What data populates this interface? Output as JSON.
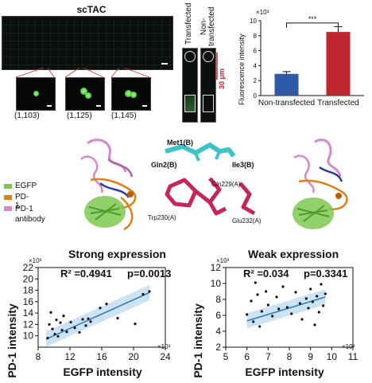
{
  "panel_a": {
    "title": "scTAC",
    "cell_labels": [
      "(1,103)",
      "(1,125)",
      "(1,145)"
    ],
    "column_labels": [
      "Transfected",
      "Non-\ntransfected"
    ],
    "scale_label": "30 μm"
  },
  "bar_chart": {
    "type": "bar",
    "categories": [
      "Non-transfected",
      "Transfected"
    ],
    "values": [
      2.9,
      8.5
    ],
    "errors": [
      0.3,
      0.7
    ],
    "colors": [
      "#2e5aa8",
      "#c0272d"
    ],
    "ylabel": "Fluorescence intensity",
    "exponent": "×10³",
    "ylim": [
      0,
      10
    ],
    "yticks": [
      "0",
      "2",
      "4",
      "6",
      "8",
      "10"
    ],
    "significance": "***"
  },
  "structure": {
    "legend": [
      {
        "label": "EGFP",
        "color": "#7ec850"
      },
      {
        "label": "PD-1",
        "color": "#e07f1a"
      },
      {
        "label": "PD-1\nantibody",
        "color": "#d987c8"
      }
    ],
    "residues": [
      "Met1(B)",
      "Gln2(B)",
      "Ile3(B)",
      "Gln229(A)",
      "Trp230(A)",
      "Glu232(A)"
    ]
  },
  "chart_data": [
    {
      "type": "scatter",
      "title": "Strong expression",
      "xlabel": "EGFP intensity",
      "ylabel": "PD-1 intensity",
      "x_exponent": "×10³",
      "y_exponent": "×10³",
      "stats": [
        "R² =0.4941",
        "p=0.0013"
      ],
      "xlim": [
        8,
        24
      ],
      "ylim": [
        8,
        22
      ],
      "xticks": [
        "8",
        "12",
        "16",
        "20",
        "24"
      ],
      "yticks": [
        "10",
        "12",
        "14",
        "16",
        "18",
        "20",
        "22"
      ],
      "points": [
        {
          "x": 9.2,
          "y": 9.6
        },
        {
          "x": 9.4,
          "y": 12.0
        },
        {
          "x": 9.6,
          "y": 14.1
        },
        {
          "x": 9.8,
          "y": 11.2
        },
        {
          "x": 10.1,
          "y": 10.3
        },
        {
          "x": 10.3,
          "y": 12.8
        },
        {
          "x": 10.5,
          "y": 9.9
        },
        {
          "x": 10.8,
          "y": 12.3
        },
        {
          "x": 11.0,
          "y": 11.0
        },
        {
          "x": 11.2,
          "y": 13.5
        },
        {
          "x": 11.6,
          "y": 10.7
        },
        {
          "x": 12.1,
          "y": 12.4
        },
        {
          "x": 12.6,
          "y": 11.4
        },
        {
          "x": 13.2,
          "y": 10.6
        },
        {
          "x": 13.6,
          "y": 12.9
        },
        {
          "x": 14.0,
          "y": 11.8
        },
        {
          "x": 14.3,
          "y": 13.0
        },
        {
          "x": 14.6,
          "y": 12.5
        },
        {
          "x": 15.8,
          "y": 14.9
        },
        {
          "x": 16.6,
          "y": 15.6
        },
        {
          "x": 18.0,
          "y": 13.1
        },
        {
          "x": 20.2,
          "y": 12.1
        },
        {
          "x": 21.2,
          "y": 17.3
        },
        {
          "x": 22.0,
          "y": 17.8
        }
      ],
      "fit": {
        "x": [
          9,
          22
        ],
        "y": [
          9.4,
          17.6
        ]
      }
    },
    {
      "type": "scatter",
      "title": "Weak expression",
      "xlabel": "EGFP intensity",
      "ylabel": "PD-1 intensity",
      "x_exponent": "×10³",
      "y_exponent": "×10³",
      "stats": [
        "R² =0.034",
        "p=0.3341"
      ],
      "xlim": [
        5,
        11
      ],
      "ylim": [
        2,
        12
      ],
      "xticks": [
        "5",
        "6",
        "7",
        "8",
        "9",
        "10",
        "11"
      ],
      "yticks": [
        "2",
        "4",
        "6",
        "8",
        "10",
        "12"
      ],
      "points": [
        {
          "x": 6.0,
          "y": 6.1
        },
        {
          "x": 6.2,
          "y": 7.8
        },
        {
          "x": 6.3,
          "y": 5.2
        },
        {
          "x": 6.4,
          "y": 10.1
        },
        {
          "x": 6.5,
          "y": 8.6
        },
        {
          "x": 6.6,
          "y": 4.6
        },
        {
          "x": 6.7,
          "y": 6.5
        },
        {
          "x": 6.9,
          "y": 9.0
        },
        {
          "x": 7.0,
          "y": 7.3
        },
        {
          "x": 7.2,
          "y": 5.9
        },
        {
          "x": 7.4,
          "y": 8.3
        },
        {
          "x": 7.5,
          "y": 6.8
        },
        {
          "x": 7.7,
          "y": 9.6
        },
        {
          "x": 7.9,
          "y": 7.0
        },
        {
          "x": 8.1,
          "y": 6.2
        },
        {
          "x": 8.3,
          "y": 8.9
        },
        {
          "x": 8.5,
          "y": 7.5
        },
        {
          "x": 8.6,
          "y": 5.5
        },
        {
          "x": 8.8,
          "y": 8.1
        },
        {
          "x": 8.9,
          "y": 6.9
        },
        {
          "x": 9.0,
          "y": 9.3
        },
        {
          "x": 9.1,
          "y": 7.7
        },
        {
          "x": 9.2,
          "y": 4.8
        },
        {
          "x": 9.3,
          "y": 8.4
        },
        {
          "x": 9.4,
          "y": 6.4
        },
        {
          "x": 9.5,
          "y": 9.9
        },
        {
          "x": 9.6,
          "y": 7.2
        },
        {
          "x": 9.7,
          "y": 8.7
        }
      ],
      "fit": {
        "x": [
          6,
          9.7
        ],
        "y": [
          5.3,
          8.3
        ]
      }
    }
  ]
}
